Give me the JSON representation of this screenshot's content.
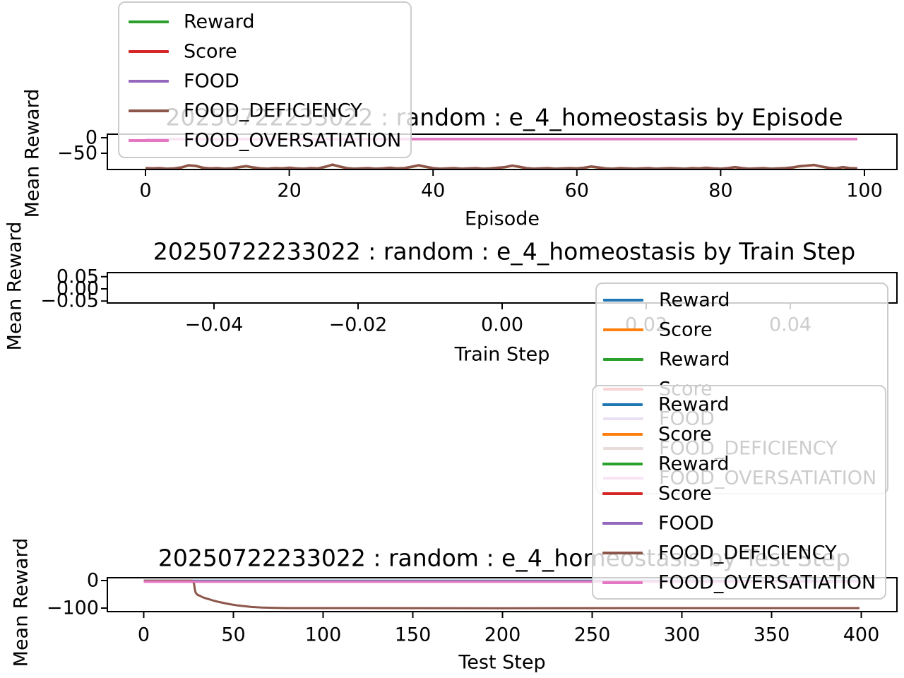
{
  "figure": {
    "background": "#ffffff"
  },
  "chart_data": [
    {
      "type": "line",
      "title": "20250722233022 : random : e_4_homeostasis by Episode",
      "xlabel": "Episode",
      "ylabel": "Mean Reward",
      "xlim": [
        -5,
        105
      ],
      "ylim": [
        -102,
        11
      ],
      "grid": false,
      "legend_position": "upper-left-outside-clipped",
      "xtick_values": [
        0,
        20,
        40,
        60,
        80,
        100
      ],
      "xtick_labels": [
        "0",
        "20",
        "40",
        "60",
        "80",
        "100"
      ],
      "ytick_values": [
        0,
        -50
      ],
      "ytick_labels": [
        "0",
        "−50"
      ],
      "data_xrange": [
        0,
        99
      ],
      "series": [
        {
          "name": "Reward",
          "color": "#2ca02c",
          "ref": "FOOD_DEFICIENCY",
          "offset": -1.5,
          "width": 3
        },
        {
          "name": "Score",
          "color": "#d62728",
          "ref": "FOOD_DEFICIENCY",
          "offset": -0.9,
          "width": 3
        },
        {
          "name": "FOOD",
          "color": "#9467bd",
          "constant": -4.2,
          "width": 3
        },
        {
          "name": "FOOD_DEFICIENCY",
          "color": "#8c564b",
          "x_start": 0,
          "x_step": 1,
          "width": 3,
          "values": [
            -97,
            -98,
            -97,
            -99,
            -98,
            -95,
            -88,
            -90,
            -96,
            -98,
            -97,
            -99,
            -98,
            -94,
            -91,
            -95,
            -98,
            -99,
            -97,
            -98,
            -96,
            -98,
            -99,
            -97,
            -98,
            -93,
            -86,
            -92,
            -97,
            -99,
            -98,
            -97,
            -99,
            -98,
            -96,
            -98,
            -97,
            -93,
            -88,
            -93,
            -97,
            -99,
            -98,
            -97,
            -99,
            -98,
            -97,
            -99,
            -98,
            -96,
            -94,
            -89,
            -93,
            -97,
            -99,
            -98,
            -97,
            -99,
            -98,
            -97,
            -98,
            -96,
            -92,
            -95,
            -98,
            -99,
            -97,
            -98,
            -99,
            -98,
            -97,
            -99,
            -98,
            -97,
            -98,
            -99,
            -97,
            -98,
            -96,
            -98,
            -99,
            -97,
            -94,
            -97,
            -99,
            -98,
            -97,
            -99,
            -98,
            -97,
            -95,
            -91,
            -89,
            -87,
            -92,
            -96,
            -98,
            -94,
            -97,
            -98
          ]
        },
        {
          "name": "FOOD_OVERSATIATION",
          "color": "#e377c2",
          "constant": -4.5,
          "width": 3.5
        }
      ]
    },
    {
      "type": "line",
      "title": "20250722233022 : random : e_4_homeostasis by Train Step",
      "xlabel": "Train Step",
      "ylabel": "Mean Reward",
      "xlim": [
        -0.055,
        0.055
      ],
      "ylim": [
        -0.06,
        0.062
      ],
      "grid": false,
      "legend_position": "right-overlapping-below-axes",
      "xtick_values": [
        -0.04,
        -0.02,
        0.0,
        0.02,
        0.04
      ],
      "xtick_labels": [
        "−0.04",
        "−0.02",
        "0.00",
        "0.02",
        "0.04"
      ],
      "ytick_values": [
        0.05,
        0.0,
        -0.05
      ],
      "ytick_labels": [
        "0.05",
        "0.00",
        "−0.05"
      ],
      "data_xrange": null,
      "series": []
    },
    {
      "type": "line",
      "title": "20250722233022 : random : e_4_homeostasis by Test Step",
      "xlabel": "Test Step",
      "ylabel": "Mean Reward",
      "xlim": [
        -20,
        420
      ],
      "ylim": [
        -113,
        10
      ],
      "grid": false,
      "legend_position": "upper-right-overlapping",
      "xtick_values": [
        0,
        50,
        100,
        150,
        200,
        250,
        300,
        350,
        400
      ],
      "xtick_labels": [
        "0",
        "50",
        "100",
        "150",
        "200",
        "250",
        "300",
        "350",
        "400"
      ],
      "ytick_values": [
        0,
        -100
      ],
      "ytick_labels": [
        "0",
        "−100"
      ],
      "data_xrange": [
        0,
        399
      ],
      "series": [
        {
          "name": "Reward",
          "color": "#1f77b4",
          "constant": 0,
          "width": 2.5
        },
        {
          "name": "Score",
          "color": "#ff7f0e",
          "constant": -2.6,
          "width": 2.5
        },
        {
          "name": "Reward",
          "color": "#2ca02c",
          "constant": -2.6,
          "width": 2.5
        },
        {
          "name": "Score",
          "color": "#d62728",
          "constant": -2.7,
          "width": 2.5
        },
        {
          "name": "FOOD",
          "color": "#9467bd",
          "constant": -2.8,
          "width": 2.5
        },
        {
          "name": "FOOD_DEFICIENCY",
          "color": "#8c564b",
          "width": 3,
          "points": [
            [
              0,
              -0.5
            ],
            [
              27,
              -0.5
            ],
            [
              28,
              -10
            ],
            [
              28.6,
              -35
            ],
            [
              29,
              -45
            ],
            [
              30,
              -52
            ],
            [
              31.5,
              -56
            ],
            [
              33,
              -61
            ],
            [
              35,
              -65
            ],
            [
              37,
              -69
            ],
            [
              39,
              -73
            ],
            [
              42,
              -78
            ],
            [
              45,
              -82
            ],
            [
              48,
              -86
            ],
            [
              52,
              -90
            ],
            [
              56,
              -93
            ],
            [
              60,
              -96
            ],
            [
              66,
              -98
            ],
            [
              72,
              -99
            ],
            [
              80,
              -100
            ],
            [
              120,
              -100
            ],
            [
              200,
              -100.5
            ],
            [
              300,
              -100
            ],
            [
              399,
              -100
            ]
          ]
        },
        {
          "name": "FOOD_OVERSATIATION",
          "color": "#e377c2",
          "constant": -4,
          "width": 3.5
        }
      ]
    }
  ],
  "legends": [
    {
      "name": "episode-legend",
      "entries": [
        {
          "label": "Reward",
          "color": "#2ca02c"
        },
        {
          "label": "Score",
          "color": "#d62728"
        },
        {
          "label": "FOOD",
          "color": "#9467bd"
        },
        {
          "label": "FOOD_DEFICIENCY",
          "color": "#8c564b"
        },
        {
          "label": "FOOD_OVERSATIATION",
          "color": "#e377c2"
        }
      ]
    },
    {
      "name": "train-step-legend",
      "entries": [
        {
          "label": "Reward",
          "color": "#1f77b4"
        },
        {
          "label": "Score",
          "color": "#ff7f0e"
        },
        {
          "label": "Reward",
          "color": "#2ca02c"
        },
        {
          "label": "Score",
          "color": "#d62728"
        },
        {
          "label": "FOOD",
          "color": "#9467bd"
        },
        {
          "label": "FOOD_DEFICIENCY",
          "color": "#8c564b"
        },
        {
          "label": "FOOD_OVERSATIATION",
          "color": "#e377c2"
        }
      ]
    },
    {
      "name": "test-step-legend",
      "entries": [
        {
          "label": "Reward",
          "color": "#1f77b4"
        },
        {
          "label": "Score",
          "color": "#ff7f0e"
        },
        {
          "label": "Reward",
          "color": "#2ca02c"
        },
        {
          "label": "Score",
          "color": "#d62728"
        },
        {
          "label": "FOOD",
          "color": "#9467bd"
        },
        {
          "label": "FOOD_DEFICIENCY",
          "color": "#8c564b"
        },
        {
          "label": "FOOD_OVERSATIATION",
          "color": "#e377c2"
        }
      ]
    }
  ]
}
